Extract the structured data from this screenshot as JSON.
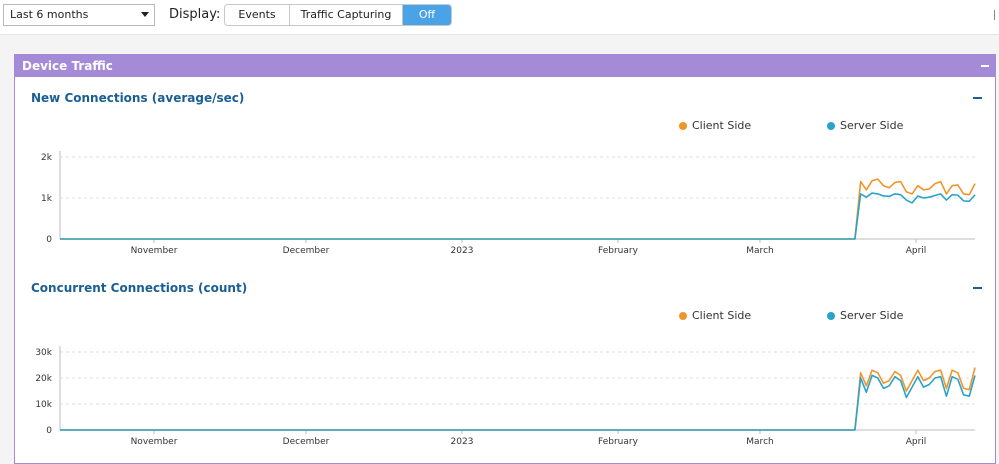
{
  "toolbar": {
    "range": "Last 6 months",
    "display_label": "Display:",
    "display_options": [
      "Events",
      "Traffic Capturing",
      "Off"
    ],
    "active_option": "Off"
  },
  "panel": {
    "title": "Device Traffic"
  },
  "colors": {
    "client": "#f0952a",
    "server": "#2aa3cc",
    "panel_header": "#a58ad8",
    "section_title": "#1a5e94"
  },
  "chart_data": [
    {
      "type": "line",
      "title": "New Connections (average/sec)",
      "x_tick_labels": [
        "November",
        "December",
        "2023",
        "February",
        "March",
        "April"
      ],
      "y_tick_labels": [
        "0",
        "1k",
        "2k"
      ],
      "ylim": [
        0,
        2000
      ],
      "grid": true,
      "legend_placement": "top",
      "series": [
        {
          "name": "Client Side",
          "values": [
            0,
            0,
            0,
            0,
            0,
            0,
            0,
            0,
            0,
            0,
            0,
            0,
            0,
            0,
            0,
            0,
            0,
            0,
            0,
            0,
            0,
            0,
            0,
            0,
            0,
            0,
            0,
            0,
            0,
            0,
            0,
            0,
            0,
            0,
            0,
            0,
            0,
            0,
            0,
            0,
            0,
            0,
            0,
            0,
            0,
            0,
            0,
            0,
            0,
            0,
            0,
            0,
            0,
            0,
            0,
            0,
            0,
            0,
            0,
            0,
            0,
            0,
            0,
            0,
            0,
            0,
            0,
            0,
            0,
            0,
            0,
            0,
            0,
            0,
            0,
            0,
            0,
            0,
            0,
            0,
            0,
            0,
            0,
            0,
            0,
            0,
            0,
            0,
            0,
            0,
            0,
            0,
            0,
            0,
            0,
            0,
            0,
            0,
            0,
            0,
            0,
            0,
            0,
            0,
            0,
            0,
            0,
            0,
            0,
            0,
            0,
            0,
            0,
            0,
            0,
            0,
            0,
            0,
            0,
            0,
            0,
            0,
            0,
            0,
            0,
            0,
            0,
            0,
            0,
            0,
            0,
            0,
            0,
            0,
            0,
            0,
            0,
            0,
            0,
            0,
            1400,
            1200,
            1420,
            1460,
            1300,
            1250,
            1380,
            1400,
            1150,
            1100,
            1300,
            1200,
            1220,
            1350,
            1400,
            1100,
            1300,
            1320,
            1100,
            1080,
            1350
          ]
        },
        {
          "name": "Server Side",
          "values": [
            0,
            0,
            0,
            0,
            0,
            0,
            0,
            0,
            0,
            0,
            0,
            0,
            0,
            0,
            0,
            0,
            0,
            0,
            0,
            0,
            0,
            0,
            0,
            0,
            0,
            0,
            0,
            0,
            0,
            0,
            0,
            0,
            0,
            0,
            0,
            0,
            0,
            0,
            0,
            0,
            0,
            0,
            0,
            0,
            0,
            0,
            0,
            0,
            0,
            0,
            0,
            0,
            0,
            0,
            0,
            0,
            0,
            0,
            0,
            0,
            0,
            0,
            0,
            0,
            0,
            0,
            0,
            0,
            0,
            0,
            0,
            0,
            0,
            0,
            0,
            0,
            0,
            0,
            0,
            0,
            0,
            0,
            0,
            0,
            0,
            0,
            0,
            0,
            0,
            0,
            0,
            0,
            0,
            0,
            0,
            0,
            0,
            0,
            0,
            0,
            0,
            0,
            0,
            0,
            0,
            0,
            0,
            0,
            0,
            0,
            0,
            0,
            0,
            0,
            0,
            0,
            0,
            0,
            0,
            0,
            0,
            0,
            0,
            0,
            0,
            0,
            0,
            0,
            0,
            0,
            0,
            0,
            0,
            0,
            0,
            0,
            0,
            0,
            0,
            0,
            1100,
            1020,
            1120,
            1100,
            1050,
            1040,
            1100,
            1080,
            950,
            880,
            1050,
            1000,
            1020,
            1060,
            1100,
            950,
            1080,
            1070,
            930,
            920,
            1080
          ]
        }
      ]
    },
    {
      "type": "line",
      "title": "Concurrent Connections (count)",
      "x_tick_labels": [
        "November",
        "December",
        "2023",
        "February",
        "March",
        "April"
      ],
      "y_tick_labels": [
        "0",
        "10k",
        "20k",
        "30k"
      ],
      "ylim": [
        0,
        30000
      ],
      "grid": true,
      "legend_placement": "top",
      "series": [
        {
          "name": "Client Side",
          "values": [
            0,
            0,
            0,
            0,
            0,
            0,
            0,
            0,
            0,
            0,
            0,
            0,
            0,
            0,
            0,
            0,
            0,
            0,
            0,
            0,
            0,
            0,
            0,
            0,
            0,
            0,
            0,
            0,
            0,
            0,
            0,
            0,
            0,
            0,
            0,
            0,
            0,
            0,
            0,
            0,
            0,
            0,
            0,
            0,
            0,
            0,
            0,
            0,
            0,
            0,
            0,
            0,
            0,
            0,
            0,
            0,
            0,
            0,
            0,
            0,
            0,
            0,
            0,
            0,
            0,
            0,
            0,
            0,
            0,
            0,
            0,
            0,
            0,
            0,
            0,
            0,
            0,
            0,
            0,
            0,
            0,
            0,
            0,
            0,
            0,
            0,
            0,
            0,
            0,
            0,
            0,
            0,
            0,
            0,
            0,
            0,
            0,
            0,
            0,
            0,
            0,
            0,
            0,
            0,
            0,
            0,
            0,
            0,
            0,
            0,
            0,
            0,
            0,
            0,
            0,
            0,
            0,
            0,
            0,
            0,
            0,
            0,
            0,
            0,
            0,
            0,
            0,
            0,
            0,
            0,
            0,
            0,
            0,
            0,
            0,
            0,
            0,
            0,
            0,
            0,
            22000,
            17000,
            23000,
            22000,
            18000,
            19000,
            22500,
            21000,
            15000,
            19000,
            23000,
            19000,
            20000,
            22500,
            23000,
            16000,
            23000,
            22000,
            16000,
            15500,
            24000
          ]
        },
        {
          "name": "Server Side",
          "values": [
            0,
            0,
            0,
            0,
            0,
            0,
            0,
            0,
            0,
            0,
            0,
            0,
            0,
            0,
            0,
            0,
            0,
            0,
            0,
            0,
            0,
            0,
            0,
            0,
            0,
            0,
            0,
            0,
            0,
            0,
            0,
            0,
            0,
            0,
            0,
            0,
            0,
            0,
            0,
            0,
            0,
            0,
            0,
            0,
            0,
            0,
            0,
            0,
            0,
            0,
            0,
            0,
            0,
            0,
            0,
            0,
            0,
            0,
            0,
            0,
            0,
            0,
            0,
            0,
            0,
            0,
            0,
            0,
            0,
            0,
            0,
            0,
            0,
            0,
            0,
            0,
            0,
            0,
            0,
            0,
            0,
            0,
            0,
            0,
            0,
            0,
            0,
            0,
            0,
            0,
            0,
            0,
            0,
            0,
            0,
            0,
            0,
            0,
            0,
            0,
            0,
            0,
            0,
            0,
            0,
            0,
            0,
            0,
            0,
            0,
            0,
            0,
            0,
            0,
            0,
            0,
            0,
            0,
            0,
            0,
            0,
            0,
            0,
            0,
            0,
            0,
            0,
            0,
            0,
            0,
            0,
            0,
            0,
            0,
            0,
            0,
            0,
            0,
            0,
            0,
            20000,
            14500,
            21000,
            20000,
            16000,
            17000,
            20500,
            19000,
            12500,
            16500,
            20500,
            16500,
            17500,
            20000,
            20500,
            13000,
            20500,
            19500,
            13500,
            13000,
            21000
          ]
        }
      ]
    }
  ]
}
